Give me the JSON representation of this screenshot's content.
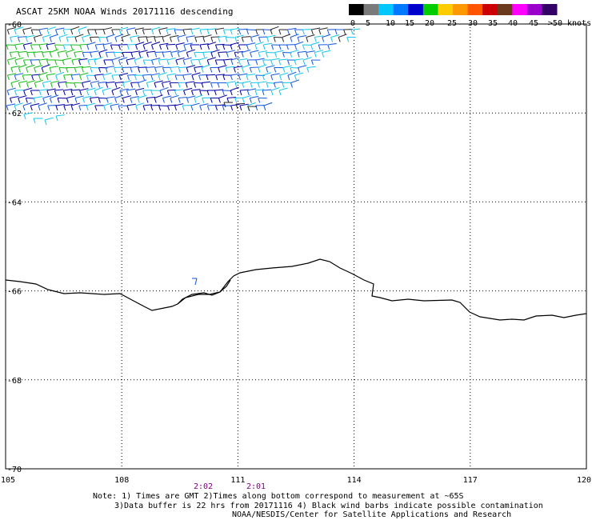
{
  "title": "ASCAT 25KM NOAA Winds 20171116 descending",
  "legend": {
    "labels": [
      "0",
      "5",
      "10",
      "15",
      "20",
      "25",
      "30",
      "35",
      "40",
      "45",
      ">50 knots"
    ],
    "colors": [
      "#000000",
      "#7a7a7a",
      "#00c8ff",
      "#0078ff",
      "#0000cc",
      "#00cc00",
      "#ffcc00",
      "#ff9900",
      "#ff5500",
      "#cc0000",
      "#6b3a1c",
      "#ff00ff",
      "#9900cc",
      "#330066"
    ]
  },
  "axes": {
    "lon_ticks": [
      105,
      108,
      111,
      114,
      117,
      120
    ],
    "lat_ticks": [
      -60,
      -62,
      -64,
      -66,
      -68,
      -70
    ],
    "lon_labels": [
      "105",
      "108",
      "111",
      "114",
      "117",
      "120"
    ],
    "lat_labels": [
      "-60",
      "-62",
      "-64",
      "-66",
      "-68",
      "-70"
    ],
    "lon_range": [
      105,
      120
    ],
    "lat_range": [
      -70,
      -60
    ]
  },
  "times": [
    "2:02",
    "2:01"
  ],
  "time_color": "#800080",
  "notes": [
    "Note: 1) Times are GMT 2)Times along bottom correspond to measurement at ~65S",
    "3)Data buffer is 22 hrs from 20171116 4) Black wind barbs indicate possible contamination",
    "NOAA/NESDIS/Center for Satellite Applications and Research"
  ]
}
